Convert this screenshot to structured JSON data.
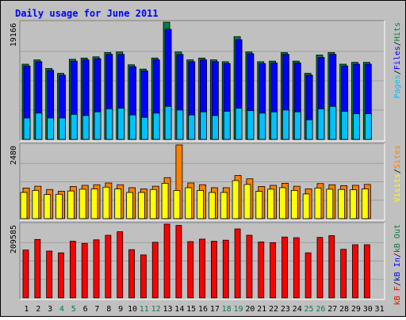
{
  "chart_data": {
    "type": "bar",
    "title": "Daily usage for June 2011",
    "days": [
      "1",
      "2",
      "3",
      "4",
      "5",
      "6",
      "7",
      "8",
      "9",
      "10",
      "11",
      "12",
      "13",
      "14",
      "15",
      "16",
      "17",
      "18",
      "19",
      "20",
      "21",
      "22",
      "23",
      "24",
      "25",
      "26",
      "27",
      "28",
      "29",
      "30",
      "31"
    ],
    "weekend_days": [
      "4",
      "5",
      "11",
      "12",
      "18",
      "19",
      "25",
      "26"
    ],
    "panels": [
      {
        "name": "hits-files-pages",
        "ymax_label": "19166",
        "ymax": 19166,
        "right_label": [
          "Pages",
          "/",
          "Files",
          "/",
          "Hits"
        ],
        "right_label_colors": [
          "#00c0ff",
          "#000000",
          "#0000ff",
          "#000000",
          "#008040"
        ],
        "series": [
          {
            "name": "Hits",
            "color": "#008040",
            "values": [
              12300,
              13000,
              11600,
              10800,
              13100,
              13300,
              13500,
              14200,
              14300,
              12200,
              11500,
              13300,
              19166,
              14300,
              13000,
              13300,
              13000,
              12700,
              16800,
              14300,
              12700,
              12800,
              14200,
              12800,
              10800,
              13800,
              14200,
              12300,
              12600,
              12600
            ]
          },
          {
            "name": "Files",
            "color": "#0000ff",
            "values": [
              12000,
              12700,
              11300,
              10500,
              12800,
              13000,
              13200,
              13900,
              13900,
              11900,
              11200,
              13000,
              18000,
              13900,
              12700,
              13000,
              12700,
              12400,
              16300,
              14000,
              12400,
              12500,
              13900,
              12500,
              10500,
              13400,
              13900,
              12000,
              12300,
              12300
            ]
          },
          {
            "name": "Pages",
            "color": "#00c0ff",
            "values": [
              3500,
              4300,
              3500,
              3500,
              4100,
              3900,
              4500,
              5000,
              5100,
              4000,
              3600,
              4300,
              5400,
              4800,
              4000,
              4500,
              3900,
              4600,
              5100,
              4700,
              4300,
              4500,
              4800,
              4500,
              3200,
              5000,
              5400,
              4600,
              4200,
              4200
            ]
          }
        ]
      },
      {
        "name": "visits-sites",
        "ymax_label": "2480",
        "ymax": 2480,
        "right_label": [
          "Visits",
          "/",
          "Sites"
        ],
        "right_label_colors": [
          "#ffff00",
          "#000000",
          "#ff8000"
        ],
        "series": [
          {
            "name": "Sites",
            "color": "#ff8000",
            "values": [
              1030,
              1090,
              980,
              920,
              1080,
              1120,
              1140,
              1200,
              1140,
              1040,
              1000,
              1090,
              1380,
              2480,
              1200,
              1140,
              1040,
              1040,
              1450,
              1340,
              1080,
              1120,
              1190,
              1090,
              1000,
              1180,
              1140,
              1110,
              1120,
              1150
            ]
          },
          {
            "name": "Visits",
            "color": "#ffff00",
            "values": [
              880,
              950,
              810,
              820,
              930,
              990,
              1000,
              1060,
              1000,
              880,
              880,
              980,
              1190,
              950,
              1040,
              950,
              880,
              880,
              1280,
              1150,
              920,
              990,
              1040,
              950,
              830,
              1030,
              990,
              980,
              970,
              1000
            ]
          }
        ]
      },
      {
        "name": "kbytes",
        "ymax_label": "209585",
        "ymax": 209585,
        "right_label": [
          "kB F",
          "/",
          "kB In",
          "/",
          "kB Out"
        ],
        "right_label_colors": [
          "#ff0000",
          "#000000",
          "#0000ff",
          "#000000",
          "#008040"
        ],
        "series": [
          {
            "name": "kB F",
            "color": "#ff0000",
            "values": [
              136000,
              166000,
              133000,
              128000,
              161000,
              155000,
              165000,
              178000,
              188000,
              137000,
              122000,
              158000,
              209585,
              206000,
              160000,
              167000,
              161000,
              164000,
              196000,
              178000,
              159000,
              157000,
              173000,
              171000,
              128000,
              172000,
              177000,
              138000,
              151000,
              151000
            ]
          }
        ]
      }
    ]
  }
}
